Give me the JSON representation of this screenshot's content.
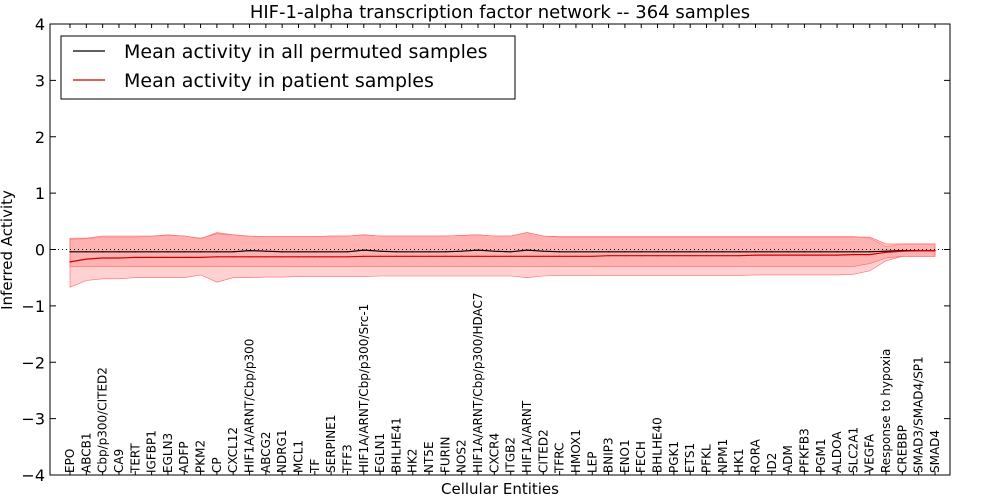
{
  "chart_data": {
    "type": "line",
    "title": "HIF-1-alpha transcription factor network -- 364 samples",
    "xlabel": "Cellular Entities",
    "ylabel": "Inferred Activity",
    "ylim": [
      -4,
      4
    ],
    "yticks": [
      -4,
      -3,
      -2,
      -1,
      0,
      1,
      2,
      3,
      4
    ],
    "ytick_labels": [
      "−4",
      "−3",
      "−2",
      "−1",
      "0",
      "1",
      "2",
      "3",
      "4"
    ],
    "legend_position": "top-left",
    "categories": [
      "EPO",
      "ABCB1",
      "Cbp/p300/CITED2",
      "CA9",
      "TERT",
      "IGFBP1",
      "EGLN3",
      "ADFP",
      "PKM2",
      "CP",
      "CXCL12",
      "HIF1A/ARNT/Cbp/p300",
      "ABCG2",
      "NDRG1",
      "MCL1",
      "TF",
      "SERPINE1",
      "TFF3",
      "HIF1A/ARNT/Cbp/p300/Src-1",
      "EGLN1",
      "BHLHE41",
      "HK2",
      "NT5E",
      "FURIN",
      "NOS2",
      "HIF1A/ARNT/Cbp/p300/HDAC7",
      "CXCR4",
      "ITGB2",
      "HIF1A/ARNT",
      "CITED2",
      "TFRC",
      "HMOX1",
      "LEP",
      "BNIP3",
      "ENO1",
      "FECH",
      "BHLHE40",
      "PGK1",
      "ETS1",
      "PFKL",
      "NPM1",
      "HK1",
      "RORA",
      "ID2",
      "ADM",
      "PFKFB3",
      "PGM1",
      "ALDOA",
      "SLC2A1",
      "VEGFA",
      "Response to hypoxia",
      "CREBBP",
      "SMAD3/SMAD4/SP1",
      "SMAD4"
    ],
    "series": [
      {
        "name": "Mean activity in all permuted samples",
        "color": "#000000",
        "values": [
          -0.04,
          -0.04,
          -0.04,
          -0.04,
          -0.04,
          -0.04,
          -0.04,
          -0.04,
          -0.04,
          -0.04,
          -0.04,
          -0.02,
          -0.03,
          -0.04,
          -0.04,
          -0.04,
          -0.04,
          -0.04,
          -0.01,
          -0.03,
          -0.04,
          -0.04,
          -0.04,
          -0.04,
          -0.03,
          -0.01,
          -0.03,
          -0.04,
          -0.01,
          -0.03,
          -0.04,
          -0.04,
          -0.04,
          -0.04,
          -0.04,
          -0.04,
          -0.04,
          -0.04,
          -0.04,
          -0.04,
          -0.04,
          -0.04,
          -0.04,
          -0.04,
          -0.04,
          -0.04,
          -0.04,
          -0.04,
          -0.04,
          -0.04,
          -0.03,
          -0.02,
          -0.02,
          -0.02
        ],
        "upper": [
          0.2,
          0.2,
          0.24,
          0.24,
          0.24,
          0.24,
          0.26,
          0.24,
          0.2,
          0.28,
          0.26,
          0.24,
          0.23,
          0.23,
          0.23,
          0.23,
          0.24,
          0.24,
          0.26,
          0.24,
          0.24,
          0.24,
          0.24,
          0.24,
          0.25,
          0.26,
          0.24,
          0.24,
          0.3,
          0.24,
          0.22,
          0.22,
          0.22,
          0.22,
          0.22,
          0.22,
          0.22,
          0.22,
          0.22,
          0.22,
          0.22,
          0.22,
          0.22,
          0.22,
          0.22,
          0.22,
          0.22,
          0.22,
          0.22,
          0.22,
          0.1,
          0.1,
          0.1,
          0.1
        ],
        "lower": [
          -0.3,
          -0.3,
          -0.3,
          -0.3,
          -0.3,
          -0.3,
          -0.3,
          -0.3,
          -0.3,
          -0.3,
          -0.3,
          -0.3,
          -0.3,
          -0.3,
          -0.3,
          -0.3,
          -0.3,
          -0.3,
          -0.3,
          -0.3,
          -0.3,
          -0.3,
          -0.3,
          -0.3,
          -0.3,
          -0.3,
          -0.3,
          -0.3,
          -0.3,
          -0.3,
          -0.3,
          -0.3,
          -0.3,
          -0.3,
          -0.3,
          -0.3,
          -0.3,
          -0.3,
          -0.3,
          -0.3,
          -0.3,
          -0.3,
          -0.3,
          -0.3,
          -0.3,
          -0.3,
          -0.3,
          -0.3,
          -0.3,
          -0.25,
          -0.15,
          -0.12,
          -0.12,
          -0.12
        ]
      },
      {
        "name": "Mean activity in patient samples",
        "color": "#cc0000",
        "fill": "#ff9999",
        "values": [
          -0.22,
          -0.17,
          -0.15,
          -0.15,
          -0.14,
          -0.14,
          -0.14,
          -0.14,
          -0.14,
          -0.13,
          -0.13,
          -0.13,
          -0.13,
          -0.13,
          -0.13,
          -0.13,
          -0.13,
          -0.13,
          -0.12,
          -0.12,
          -0.12,
          -0.12,
          -0.12,
          -0.12,
          -0.12,
          -0.12,
          -0.12,
          -0.12,
          -0.12,
          -0.12,
          -0.12,
          -0.12,
          -0.12,
          -0.11,
          -0.11,
          -0.11,
          -0.11,
          -0.11,
          -0.11,
          -0.11,
          -0.11,
          -0.11,
          -0.1,
          -0.1,
          -0.1,
          -0.1,
          -0.1,
          -0.1,
          -0.09,
          -0.09,
          -0.05,
          -0.03,
          -0.02,
          -0.02
        ],
        "upper": [
          0.18,
          0.19,
          0.22,
          0.22,
          0.22,
          0.23,
          0.25,
          0.24,
          0.19,
          0.3,
          0.26,
          0.23,
          0.23,
          0.23,
          0.23,
          0.23,
          0.24,
          0.24,
          0.26,
          0.24,
          0.24,
          0.24,
          0.24,
          0.24,
          0.25,
          0.26,
          0.24,
          0.24,
          0.3,
          0.24,
          0.23,
          0.23,
          0.23,
          0.23,
          0.23,
          0.23,
          0.23,
          0.23,
          0.23,
          0.23,
          0.23,
          0.23,
          0.23,
          0.23,
          0.23,
          0.23,
          0.23,
          0.23,
          0.23,
          0.2,
          0.05,
          0.1,
          0.1,
          0.1
        ],
        "lower": [
          -0.67,
          -0.55,
          -0.52,
          -0.52,
          -0.5,
          -0.5,
          -0.5,
          -0.5,
          -0.45,
          -0.58,
          -0.5,
          -0.5,
          -0.49,
          -0.49,
          -0.48,
          -0.48,
          -0.48,
          -0.48,
          -0.48,
          -0.47,
          -0.47,
          -0.47,
          -0.47,
          -0.47,
          -0.47,
          -0.47,
          -0.47,
          -0.47,
          -0.5,
          -0.47,
          -0.46,
          -0.46,
          -0.46,
          -0.46,
          -0.46,
          -0.46,
          -0.46,
          -0.46,
          -0.46,
          -0.46,
          -0.46,
          -0.46,
          -0.45,
          -0.45,
          -0.45,
          -0.45,
          -0.45,
          -0.45,
          -0.44,
          -0.38,
          -0.2,
          -0.12,
          -0.12,
          -0.12
        ]
      }
    ]
  }
}
